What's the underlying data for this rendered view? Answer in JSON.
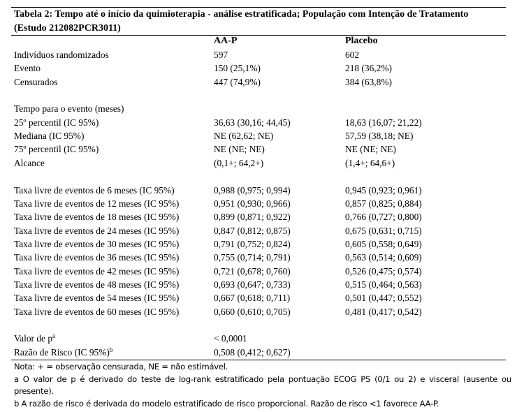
{
  "caption": "Tabela 2: Tempo até o início da quimioterapia - análise estratificada; População com Intenção de Tratamento (Estudo 212082PCR3011)",
  "columns": {
    "group1": "AA-P",
    "group2": "Placebo"
  },
  "rows": [
    {
      "label": "Indivíduos randomizados",
      "v1": "597",
      "v2": "602"
    },
    {
      "label": "Evento",
      "v1": "150 (25,1%)",
      "v2": "218 (36,2%)"
    },
    {
      "label": "Censurados",
      "v1": "447 (74,9%)",
      "v2": "384 (63,8%)"
    },
    {
      "label": "",
      "v1": "",
      "v2": ""
    },
    {
      "label": "Tempo para o evento (meses)",
      "v1": "",
      "v2": ""
    },
    {
      "label": "25º percentil (IC 95%)",
      "v1": "36,63 (30,16; 44,45)",
      "v2": "18,63 (16,07; 21,22)"
    },
    {
      "label": "Mediana (IC 95%)",
      "v1": "NE (62,62; NE)",
      "v2": "57,59 (38,18; NE)"
    },
    {
      "label": "75º percentil (IC 95%)",
      "v1": "NE (NE; NE)",
      "v2": "NE (NE; NE)"
    },
    {
      "label": "Alcance",
      "v1": "(0,1+; 64,2+)",
      "v2": "(1,4+; 64,6+)"
    },
    {
      "label": "",
      "v1": "",
      "v2": ""
    },
    {
      "label": "Taxa livre de eventos de 6 meses (IC 95%)",
      "v1": "0,988 (0,975; 0,994)",
      "v2": "0,945 (0,923; 0,961)"
    },
    {
      "label": "Taxa livre de eventos de 12 meses (IC 95%)",
      "v1": "0,951 (0,930; 0,966)",
      "v2": "0,857 (0,825; 0,884)"
    },
    {
      "label": "Taxa livre de eventos de 18 meses (IC 95%)",
      "v1": "0,899 (0,871; 0,922)",
      "v2": "0,766 (0,727; 0,800)"
    },
    {
      "label": "Taxa livre de eventos de 24 meses (IC 95%)",
      "v1": "0,847 (0,812; 0,875)",
      "v2": "0,675 (0,631; 0,715)"
    },
    {
      "label": "Taxa livre de eventos de 30 meses (IC 95%)",
      "v1": "0,791 (0,752; 0,824)",
      "v2": "0,605 (0,558; 0,649)"
    },
    {
      "label": "Taxa livre de eventos de 36 meses (IC 95%)",
      "v1": "0,755 (0,714; 0,791)",
      "v2": "0,563 (0,514; 0,609)"
    },
    {
      "label": "Taxa livre de eventos de 42 meses (IC 95%)",
      "v1": "0,721 (0,678; 0,760)",
      "v2": "0,526 (0,475; 0,574)"
    },
    {
      "label": "Taxa livre de eventos de 48 meses (IC 95%)",
      "v1": "0,693 (0,647; 0,733)",
      "v2": "0,515 (0,464; 0,563)"
    },
    {
      "label": "Taxa livre de eventos de 54 meses (IC 95%)",
      "v1": "0,667 (0,618; 0,711)",
      "v2": "0,501 (0,447; 0,552)"
    },
    {
      "label": "Taxa livre de eventos de 60 meses (IC 95%)",
      "v1": "0,660 (0,610; 0,705)",
      "v2": "0,481 (0,417; 0,542)"
    },
    {
      "label": "",
      "v1": "",
      "v2": ""
    },
    {
      "label": "Valor de p",
      "sup": "a",
      "v1": "< 0,0001",
      "v2": ""
    },
    {
      "label": "Razão de Risco (IC 95%)",
      "sup": "b",
      "v1": "0,508 (0,412; 0,627)",
      "v2": ""
    }
  ],
  "notes": {
    "nota": "Nota: + = observação censurada, NE = não estimável.",
    "a": "a O valor de p é derivado do teste de log-rank estratificado pela pontuação ECOG PS (0/1 ou 2) e visceral (ausente ou presente).",
    "b": "b A razão de risco é derivada do modelo estratificado de risco proporcional. Razão de risco <1 favorece AA-P."
  }
}
